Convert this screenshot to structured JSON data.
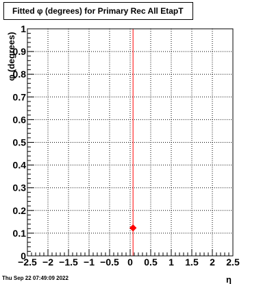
{
  "chart_data": {
    "type": "scatter",
    "title": "Fitted φ (degrees) for Primary Rec All EtapT",
    "xlabel": "η",
    "ylabel": "φ (degrees)",
    "xlim": [
      -2.5,
      2.5
    ],
    "ylim": [
      0,
      1
    ],
    "x_ticks": [
      "−2.5",
      "−2",
      "−1.5",
      "−1",
      "−0.5",
      "0",
      "0.5",
      "1",
      "1.5",
      "2",
      "2.5"
    ],
    "y_ticks": [
      "0",
      "0.1",
      "0.2",
      "0.3",
      "0.4",
      "0.5",
      "0.6",
      "0.7",
      "0.8",
      "0.9",
      "1"
    ],
    "grid": true,
    "vertical_line_x": 0.07,
    "vertical_line_color": "#ff0000",
    "series": [
      {
        "x": [
          0.07
        ],
        "y": [
          0.123
        ],
        "color": "#ff0000",
        "marker": "diamond"
      }
    ]
  },
  "footer": {
    "date": "Thu Sep 22 07:49:09 2022"
  }
}
